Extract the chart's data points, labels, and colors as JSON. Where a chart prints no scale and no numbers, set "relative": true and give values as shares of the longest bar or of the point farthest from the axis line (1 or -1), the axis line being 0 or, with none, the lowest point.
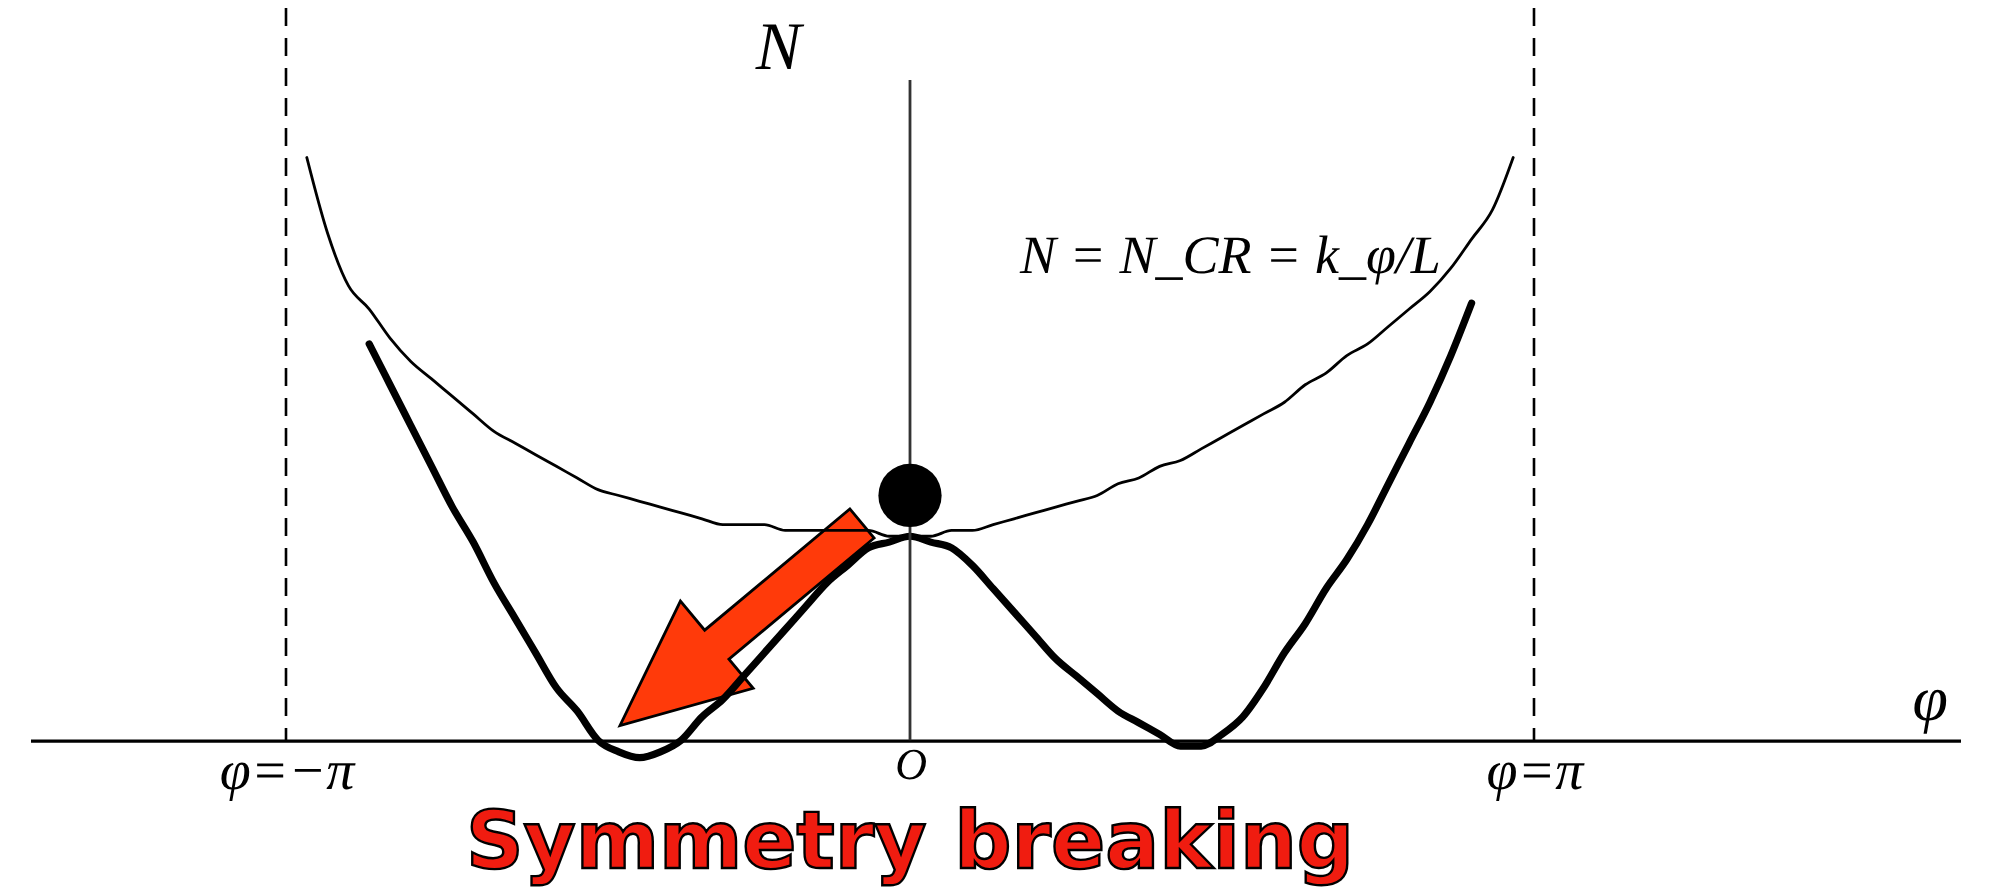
{
  "chart_data": {
    "type": "line",
    "relative": true,
    "ylabel": "N",
    "grid": false,
    "tick_labels": "x",
    "categories": [
      "φ=−π",
      null,
      null,
      null,
      null,
      null,
      null,
      null,
      null,
      null,
      null,
      null,
      null,
      null,
      null,
      null,
      null,
      null,
      null,
      null,
      null,
      null,
      null,
      null,
      null,
      null,
      null,
      null,
      null,
      null,
      "O",
      null,
      null,
      null,
      null,
      null,
      null,
      null,
      null,
      null,
      null,
      null,
      null,
      null,
      null,
      null,
      null,
      null,
      null,
      null,
      null,
      null,
      null,
      null,
      null,
      null,
      null,
      null,
      null,
      null,
      "φ=π"
    ],
    "series": [
      {
        "color": "#000000",
        "values": [
          null,
          1.0,
          0.87,
          0.78,
          0.74,
          0.69,
          0.65,
          0.62,
          0.59,
          0.56,
          0.53,
          0.51,
          0.49,
          0.47,
          0.45,
          0.43,
          0.42,
          0.41,
          0.4,
          0.39,
          0.38,
          0.37,
          0.37,
          0.37,
          0.36,
          0.36,
          0.36,
          0.36,
          0.36,
          0.35,
          0.35,
          0.35,
          0.36,
          0.36,
          0.37,
          0.38,
          0.39,
          0.4,
          0.41,
          0.42,
          0.44,
          0.45,
          0.47,
          0.48,
          0.5,
          0.52,
          0.54,
          0.56,
          0.58,
          0.61,
          0.63,
          0.66,
          0.68,
          0.71,
          0.74,
          0.77,
          0.81,
          0.86,
          0.91,
          1.0,
          null
        ]
      },
      {
        "color": "#000000",
        "values": [
          null,
          null,
          null,
          null,
          0.68,
          0.61,
          0.54,
          0.47,
          0.4,
          0.34,
          0.27,
          0.21,
          0.15,
          0.09,
          0.05,
          0.0,
          -0.02,
          -0.03,
          -0.02,
          0.0,
          0.04,
          0.07,
          0.11,
          0.15,
          0.19,
          0.23,
          0.27,
          0.3,
          0.33,
          0.34,
          0.35,
          0.34,
          0.33,
          0.3,
          0.26,
          0.22,
          0.18,
          0.14,
          0.11,
          0.08,
          0.05,
          0.03,
          0.01,
          -0.01,
          -0.01,
          0.01,
          0.04,
          0.09,
          0.15,
          0.2,
          0.26,
          0.31,
          0.37,
          0.44,
          0.51,
          0.58,
          0.66,
          0.75,
          null,
          null,
          null
        ]
      },
      {
        "type": "scatter",
        "name": "N = N_CR = k_φ/L",
        "marker": "circle",
        "color": "#000000",
        "values": [
          null,
          null,
          null,
          null,
          null,
          null,
          null,
          null,
          null,
          null,
          null,
          null,
          null,
          null,
          null,
          null,
          null,
          null,
          null,
          null,
          null,
          null,
          null,
          null,
          null,
          null,
          null,
          null,
          null,
          null,
          0.42,
          null,
          null,
          null,
          null,
          null,
          null,
          null,
          null,
          null,
          null,
          null,
          null,
          null,
          null,
          null,
          null,
          null,
          null,
          null,
          null,
          null,
          null,
          null,
          null,
          null,
          null,
          null,
          null,
          null,
          null
        ]
      }
    ],
    "ref_lines": [
      {
        "axis": "x",
        "value": "φ=−π",
        "line_style": "dashed",
        "color": "#000000"
      },
      {
        "axis": "x",
        "value": "φ=π",
        "line_style": "dashed",
        "color": "#000000"
      }
    ],
    "annotations": [
      "Symmetry breaking",
      "φ"
    ]
  }
}
